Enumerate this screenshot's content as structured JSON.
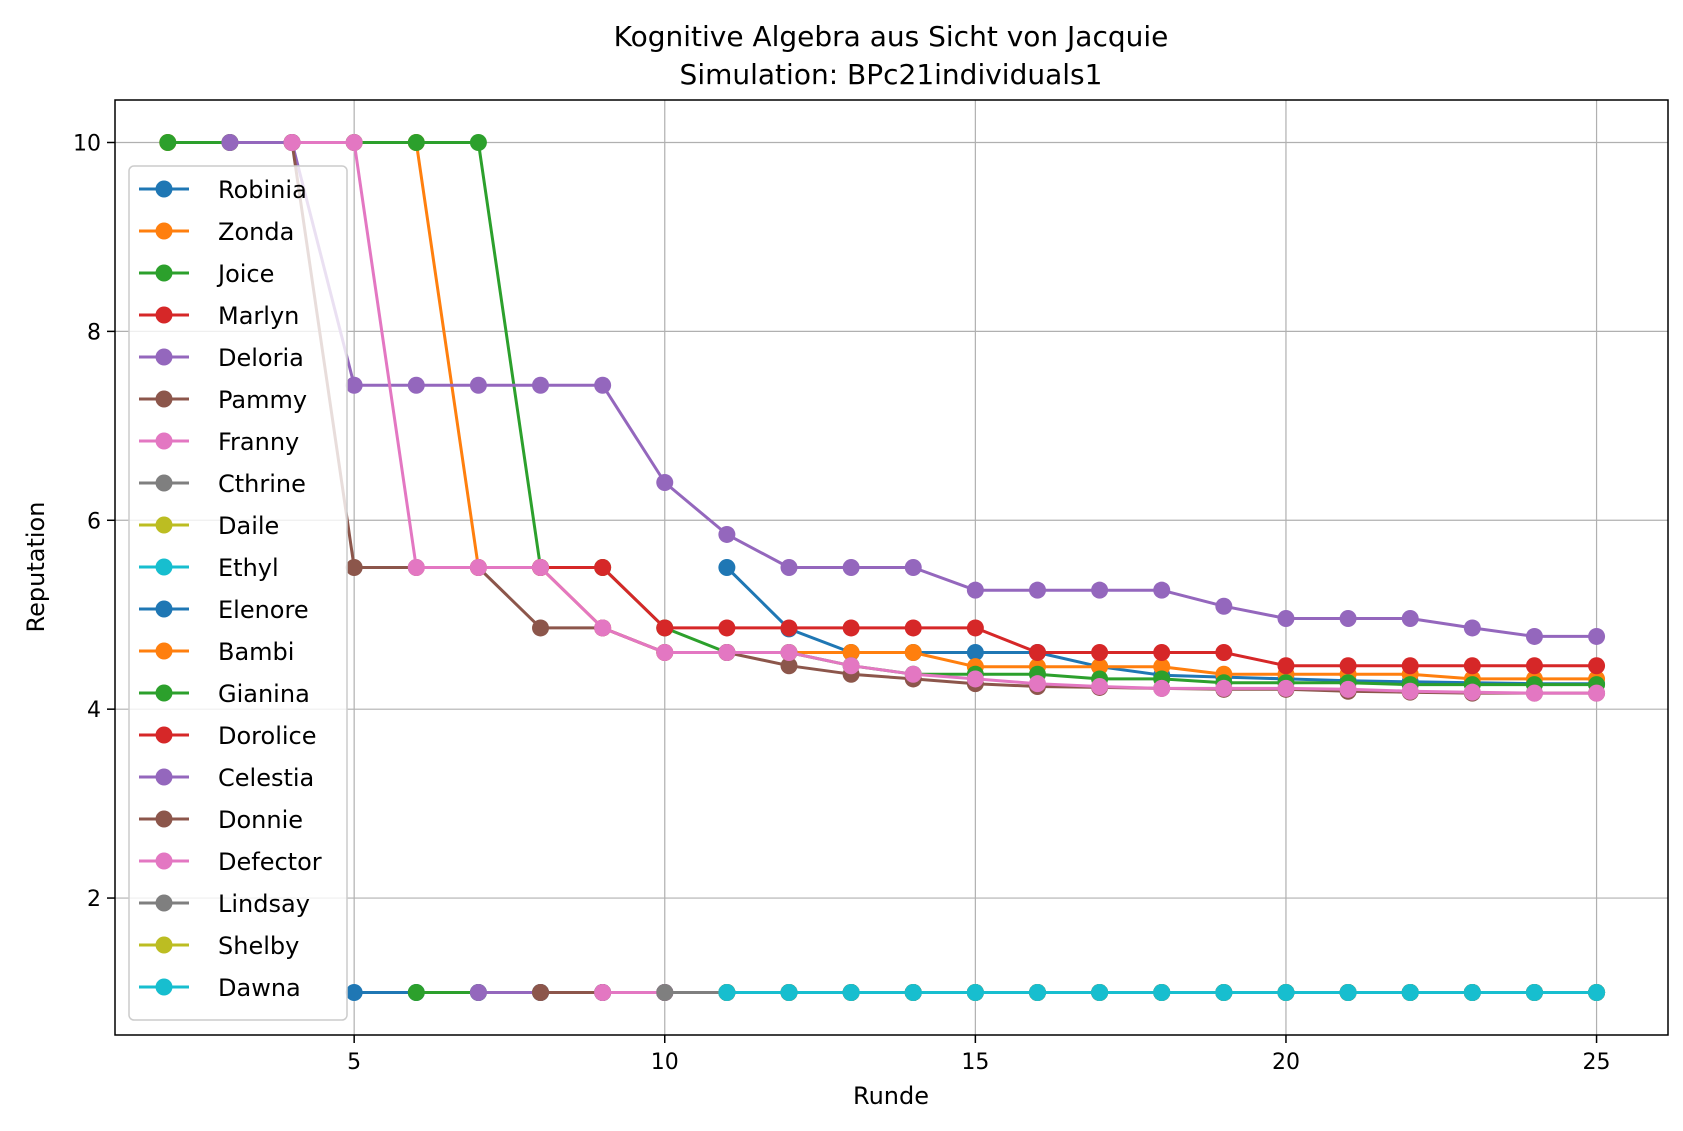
{
  "chart_data": {
    "type": "line",
    "title": "Kognitive Algebra aus Sicht von Jacquie",
    "subtitle": "Simulation: BPc21individuals1",
    "xlabel": "Runde",
    "ylabel": "Reputation",
    "xlim": [
      1.15,
      26.15
    ],
    "ylim": [
      0.55,
      10.45
    ],
    "xticks": [
      5,
      10,
      15,
      20,
      25
    ],
    "yticks": [
      2,
      4,
      6,
      8,
      10
    ],
    "grid": true,
    "legend_position": "upper-left",
    "series": [
      {
        "name": "Robinia",
        "color": "#1f77b4",
        "x": [
          11,
          12,
          13,
          14,
          15,
          16,
          17,
          18,
          19,
          20,
          21,
          22,
          23,
          24,
          25
        ],
        "y": [
          5.5,
          4.85,
          4.6,
          4.6,
          4.6,
          4.6,
          4.45,
          4.36,
          4.34,
          4.32,
          4.3,
          4.29,
          4.28,
          4.27,
          4.27
        ]
      },
      {
        "name": "Zonda",
        "color": "#ff7f0e",
        "x": [
          2,
          3,
          4,
          5,
          6,
          7,
          8,
          9,
          10,
          11,
          12,
          13,
          14,
          15,
          16,
          17,
          18,
          19,
          20,
          21,
          22,
          23,
          24,
          25
        ],
        "y": [
          10,
          10,
          10,
          10,
          10,
          5.5,
          5.5,
          4.86,
          4.6,
          4.6,
          4.6,
          4.6,
          4.6,
          4.45,
          4.45,
          4.45,
          4.45,
          4.37,
          4.37,
          4.37,
          4.37,
          4.32,
          4.32,
          4.32
        ]
      },
      {
        "name": "Joice",
        "color": "#2ca02c",
        "x": [
          2,
          3,
          4,
          5,
          6,
          7,
          8,
          9,
          10,
          11,
          12,
          13,
          14,
          15,
          16,
          17,
          18,
          19,
          20,
          21,
          22,
          23,
          24,
          25
        ],
        "y": [
          10,
          10,
          10,
          10,
          10,
          10,
          5.5,
          5.5,
          4.86,
          4.6,
          4.6,
          4.46,
          4.37,
          4.37,
          4.37,
          4.32,
          4.32,
          4.28,
          4.28,
          4.28,
          4.26,
          4.26,
          4.26,
          4.26
        ]
      },
      {
        "name": "Marlyn",
        "color": "#d62728",
        "x": [
          8,
          9,
          10,
          11,
          12,
          13,
          14,
          15,
          16,
          17,
          18,
          19,
          20,
          21,
          22,
          23,
          24,
          25
        ],
        "y": [
          5.5,
          5.5,
          4.86,
          4.86,
          4.86,
          4.86,
          4.86,
          4.86,
          4.6,
          4.6,
          4.6,
          4.6,
          4.46,
          4.46,
          4.46,
          4.46,
          4.46,
          4.46
        ]
      },
      {
        "name": "Deloria",
        "color": "#9467bd",
        "x": [
          3,
          4,
          5,
          6,
          7,
          8,
          9,
          10,
          11,
          12,
          13,
          14,
          15,
          16,
          17,
          18,
          19,
          20,
          21,
          22,
          23,
          24,
          25
        ],
        "y": [
          10,
          10,
          7.43,
          7.43,
          7.43,
          7.43,
          7.43,
          6.4,
          5.85,
          5.5,
          5.5,
          5.5,
          5.26,
          5.26,
          5.26,
          5.26,
          5.09,
          4.96,
          4.96,
          4.96,
          4.86,
          4.77,
          4.77
        ]
      },
      {
        "name": "Pammy",
        "color": "#8c564b",
        "x": [
          4,
          5,
          6,
          7,
          8,
          9,
          10,
          11,
          12,
          13,
          14,
          15,
          16,
          17,
          18,
          19,
          20,
          21,
          22,
          23,
          24,
          25
        ],
        "y": [
          10,
          5.5,
          5.5,
          5.5,
          4.86,
          4.86,
          4.6,
          4.6,
          4.46,
          4.37,
          4.32,
          4.27,
          4.24,
          4.23,
          4.22,
          4.21,
          4.21,
          4.19,
          4.18,
          4.17,
          4.17,
          4.17
        ]
      },
      {
        "name": "Franny",
        "color": "#e377c2",
        "x": [
          4,
          5,
          6,
          7,
          8,
          9,
          10,
          11,
          12,
          13,
          14,
          15,
          16,
          17,
          18,
          19,
          20,
          21,
          22,
          23,
          24,
          25
        ],
        "y": [
          10,
          10,
          5.5,
          5.5,
          5.5,
          4.86,
          4.6,
          4.6,
          4.6,
          4.46,
          4.37,
          4.32,
          4.27,
          4.24,
          4.22,
          4.22,
          4.22,
          4.21,
          4.19,
          4.18,
          4.17,
          4.17
        ]
      },
      {
        "name": "Cthrine",
        "color": "#7f7f7f",
        "x": [
          10,
          11,
          12,
          13,
          14,
          15,
          16,
          17,
          18,
          19,
          20,
          21,
          22,
          23,
          24,
          25
        ],
        "y": [
          1,
          1,
          1,
          1,
          1,
          1,
          1,
          1,
          1,
          1,
          1,
          1,
          1,
          1,
          1,
          1
        ]
      },
      {
        "name": "Daile",
        "color": "#bcbd22",
        "x": [
          11,
          12,
          13,
          14,
          15,
          16,
          17,
          18,
          19,
          20,
          21,
          22,
          23,
          24,
          25
        ],
        "y": [
          1,
          1,
          1,
          1,
          1,
          1,
          1,
          1,
          1,
          1,
          1,
          1,
          1,
          1,
          1
        ]
      },
      {
        "name": "Ethyl",
        "color": "#17becf",
        "x": [
          11,
          12,
          13,
          14,
          15,
          16,
          17,
          18,
          19,
          20,
          21,
          22,
          23,
          24,
          25
        ],
        "y": [
          1,
          1,
          1,
          1,
          1,
          1,
          1,
          1,
          1,
          1,
          1,
          1,
          1,
          1,
          1
        ]
      },
      {
        "name": "Elenore",
        "color": "#1f77b4",
        "x": [
          5,
          6,
          7,
          8,
          9,
          10,
          11,
          12,
          13,
          14,
          15,
          16,
          17,
          18,
          19,
          20,
          21,
          22,
          23,
          24,
          25
        ],
        "y": [
          1,
          1,
          1,
          1,
          1,
          1,
          1,
          1,
          1,
          1,
          1,
          1,
          1,
          1,
          1,
          1,
          1,
          1,
          1,
          1,
          1
        ]
      },
      {
        "name": "Bambi",
        "color": "#ff7f0e",
        "x": [],
        "y": []
      },
      {
        "name": "Gianina",
        "color": "#2ca02c",
        "x": [
          6,
          7,
          8,
          9,
          10,
          11,
          12,
          13,
          14,
          15,
          16,
          17,
          18,
          19,
          20,
          21,
          22,
          23,
          24,
          25
        ],
        "y": [
          1,
          1,
          1,
          1,
          1,
          1,
          1,
          1,
          1,
          1,
          1,
          1,
          1,
          1,
          1,
          1,
          1,
          1,
          1,
          1
        ]
      },
      {
        "name": "Dorolice",
        "color": "#d62728",
        "x": [],
        "y": []
      },
      {
        "name": "Celestia",
        "color": "#9467bd",
        "x": [
          7,
          8,
          9,
          10,
          11,
          12,
          13,
          14,
          15,
          16,
          17,
          18,
          19,
          20,
          21,
          22,
          23,
          24,
          25
        ],
        "y": [
          1,
          1,
          1,
          1,
          1,
          1,
          1,
          1,
          1,
          1,
          1,
          1,
          1,
          1,
          1,
          1,
          1,
          1,
          1
        ]
      },
      {
        "name": "Donnie",
        "color": "#8c564b",
        "x": [
          8,
          9,
          10,
          11,
          12,
          13,
          14,
          15,
          16,
          17,
          18,
          19,
          20,
          21,
          22,
          23,
          24,
          25
        ],
        "y": [
          1,
          1,
          1,
          1,
          1,
          1,
          1,
          1,
          1,
          1,
          1,
          1,
          1,
          1,
          1,
          1,
          1,
          1
        ]
      },
      {
        "name": "Defector",
        "color": "#e377c2",
        "x": [
          9,
          10,
          11,
          12,
          13,
          14,
          15,
          16,
          17,
          18,
          19,
          20,
          21,
          22,
          23,
          24,
          25
        ],
        "y": [
          1,
          1,
          1,
          1,
          1,
          1,
          1,
          1,
          1,
          1,
          1,
          1,
          1,
          1,
          1,
          1,
          1
        ]
      },
      {
        "name": "Lindsay",
        "color": "#7f7f7f",
        "x": [
          10,
          11,
          12,
          13,
          14,
          15,
          16,
          17,
          18,
          19,
          20,
          21,
          22,
          23,
          24,
          25
        ],
        "y": [
          1,
          1,
          1,
          1,
          1,
          1,
          1,
          1,
          1,
          1,
          1,
          1,
          1,
          1,
          1,
          1
        ]
      },
      {
        "name": "Shelby",
        "color": "#bcbd22",
        "x": [
          11,
          12,
          13,
          14,
          15,
          16,
          17,
          18,
          19,
          20,
          21,
          22,
          23,
          24,
          25
        ],
        "y": [
          1,
          1,
          1,
          1,
          1,
          1,
          1,
          1,
          1,
          1,
          1,
          1,
          1,
          1,
          1
        ]
      },
      {
        "name": "Dawna",
        "color": "#17becf",
        "x": [
          11,
          12,
          13,
          14,
          15,
          16,
          17,
          18,
          19,
          20,
          21,
          22,
          23,
          24,
          25
        ],
        "y": [
          1,
          1,
          1,
          1,
          1,
          1,
          1,
          1,
          1,
          1,
          1,
          1,
          1,
          1,
          1
        ]
      }
    ]
  }
}
